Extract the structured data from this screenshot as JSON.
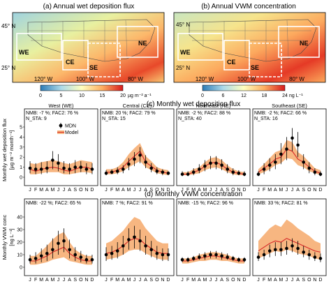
{
  "maps": [
    {
      "title": "(a) Annual wet deposition flux",
      "lat_labels": [
        "45° N",
        "25° N"
      ],
      "lon_labels": [
        "120° W",
        "100° W",
        "80° W"
      ],
      "regions": [
        "WE",
        "CE",
        "NE",
        "SE"
      ],
      "colorbar_ticks": [
        "0",
        "5",
        "10",
        "15",
        "20"
      ],
      "colorbar_unit": "µg m⁻² a⁻¹",
      "colors": [
        "#2c7bb6",
        "#abd9e9",
        "#ffffbf",
        "#fdae61",
        "#d7191c"
      ]
    },
    {
      "title": "(b) Annual VWM concentration",
      "lat_labels": [
        "45° N",
        "25° N"
      ],
      "lon_labels": [
        "120° W",
        "100° W",
        "80° W"
      ],
      "regions": [
        "WE",
        "CE",
        "NE",
        "SE"
      ],
      "colorbar_ticks": [
        "0",
        "6",
        "12",
        "18",
        "24"
      ],
      "colorbar_unit": "ng L⁻¹",
      "colors": [
        "#2c7bb6",
        "#abd9e9",
        "#ffffbf",
        "#fdae61",
        "#d7191c"
      ]
    }
  ],
  "colors": {
    "model_band": "#f7b27a",
    "model_line": "#d62728",
    "mdn": "#000000"
  },
  "chart_data": [
    {
      "type": "line",
      "title": "(c) Monthly wet deposition flux",
      "ylabel": "Monthly wet deposition flux",
      "yunit": "[µg m⁻² month⁻¹]",
      "ylim": [
        0,
        5
      ],
      "yticks": [
        0,
        1,
        2,
        3,
        4,
        5
      ],
      "months": [
        "J",
        "F",
        "M",
        "A",
        "M",
        "J",
        "J",
        "A",
        "S",
        "O",
        "N",
        "D"
      ],
      "xtick_text": "J FMAMJ J ASOND",
      "legend": [
        "MDN",
        "Model"
      ],
      "panels": [
        {
          "name": "West (WE)",
          "stats": [
            "NMB: -7 %; FAC2: 76 %",
            "N_STA: 9"
          ],
          "model": [
            0.8,
            0.6,
            0.8,
            0.9,
            1.0,
            0.9,
            0.7,
            0.6,
            0.8,
            1.0,
            1.0,
            0.8
          ],
          "model_low": [
            0.3,
            0.3,
            0.4,
            0.5,
            0.5,
            0.5,
            0.3,
            0.3,
            0.4,
            0.5,
            0.5,
            0.4
          ],
          "model_high": [
            1.4,
            1.3,
            1.5,
            1.6,
            1.7,
            1.6,
            1.4,
            1.3,
            1.5,
            1.7,
            1.6,
            1.5
          ],
          "mdn": [
            0.9,
            0.8,
            0.8,
            0.9,
            1.7,
            1.4,
            0.9,
            0.8,
            1.0,
            1.0,
            0.8,
            0.8
          ],
          "mdn_low": [
            0.4,
            0.3,
            0.3,
            0.4,
            0.8,
            0.6,
            0.4,
            0.3,
            0.4,
            0.5,
            0.3,
            0.3
          ],
          "mdn_high": [
            1.6,
            1.4,
            1.5,
            1.6,
            2.6,
            2.3,
            1.6,
            1.4,
            1.7,
            1.6,
            1.4,
            1.4
          ]
        },
        {
          "name": "Central (CE)",
          "stats": [
            "NMB: 20 %; FAC2: 79 %",
            "N_STA: 15"
          ],
          "model": [
            0.5,
            0.5,
            0.7,
            1.0,
            1.6,
            2.1,
            2.6,
            1.5,
            1.1,
            0.7,
            0.5,
            0.4
          ],
          "model_low": [
            0.3,
            0.3,
            0.4,
            0.6,
            1.0,
            1.3,
            1.6,
            1.0,
            0.7,
            0.4,
            0.3,
            0.2
          ],
          "model_high": [
            0.8,
            0.8,
            1.0,
            1.5,
            2.3,
            2.9,
            3.4,
            2.1,
            1.6,
            1.0,
            0.8,
            0.7
          ],
          "mdn": [
            0.4,
            0.5,
            0.6,
            0.8,
            1.3,
            1.8,
            2.2,
            1.5,
            0.9,
            0.6,
            0.5,
            0.4
          ],
          "mdn_low": [
            0.2,
            0.3,
            0.3,
            0.4,
            0.7,
            1.1,
            1.4,
            0.9,
            0.5,
            0.3,
            0.2,
            0.2
          ],
          "mdn_high": [
            0.7,
            0.8,
            1.0,
            1.2,
            1.9,
            2.5,
            3.0,
            2.2,
            1.4,
            1.0,
            0.8,
            0.6
          ]
        },
        {
          "name": "Northeast (NE)",
          "stats": [
            "NMB: -2 %; FAC2: 88 %",
            "N_STA: 40"
          ],
          "model": [
            0.3,
            0.3,
            0.5,
            0.7,
            1.1,
            1.4,
            1.5,
            1.2,
            0.8,
            0.5,
            0.4,
            0.3
          ],
          "model_low": [
            0.2,
            0.2,
            0.3,
            0.4,
            0.7,
            0.9,
            1.0,
            0.8,
            0.5,
            0.3,
            0.2,
            0.2
          ],
          "model_high": [
            0.5,
            0.5,
            0.8,
            1.0,
            1.5,
            1.9,
            2.0,
            1.7,
            1.2,
            0.8,
            0.6,
            0.5
          ],
          "mdn": [
            0.3,
            0.3,
            0.5,
            0.8,
            1.1,
            1.4,
            1.4,
            1.2,
            0.8,
            0.5,
            0.4,
            0.3
          ],
          "mdn_low": [
            0.1,
            0.1,
            0.2,
            0.4,
            0.6,
            0.8,
            0.8,
            0.7,
            0.4,
            0.2,
            0.2,
            0.1
          ],
          "mdn_high": [
            0.6,
            0.6,
            0.9,
            1.3,
            1.7,
            2.1,
            2.1,
            1.8,
            1.3,
            0.9,
            0.7,
            0.6
          ]
        },
        {
          "name": "Southeast (SE)",
          "stats": [
            "NMB: -2 %; FAC2: 66 %",
            "N_STA: 16"
          ],
          "model": [
            0.5,
            0.9,
            1.3,
            1.8,
            2.0,
            2.8,
            2.6,
            1.8,
            1.5,
            1.0,
            0.6,
            0.4
          ],
          "model_low": [
            0.3,
            0.5,
            0.8,
            1.2,
            1.4,
            1.9,
            1.8,
            1.2,
            1.0,
            0.6,
            0.4,
            0.2
          ],
          "model_high": [
            0.8,
            1.3,
            1.9,
            2.5,
            2.7,
            3.7,
            3.5,
            2.5,
            2.1,
            1.5,
            0.9,
            0.7
          ],
          "mdn": [
            0.3,
            0.8,
            1.2,
            1.5,
            2.3,
            2.8,
            3.9,
            3.2,
            1.5,
            0.9,
            0.5,
            0.3
          ],
          "mdn_low": [
            0.1,
            0.3,
            0.6,
            0.8,
            1.3,
            1.7,
            2.6,
            2.0,
            0.8,
            0.4,
            0.2,
            0.1
          ],
          "mdn_high": [
            0.6,
            1.4,
            1.9,
            2.3,
            3.4,
            4.0,
            4.9,
            4.5,
            2.3,
            1.5,
            0.9,
            0.6
          ]
        }
      ]
    },
    {
      "type": "line",
      "title": "(d) Monthly VWM concentration",
      "ylabel": "Monthly VWM conc",
      "yunit": "[ng L⁻¹]",
      "ylim": [
        0,
        40
      ],
      "yticks": [
        0,
        10,
        20,
        30,
        40
      ],
      "months": [
        "J",
        "F",
        "M",
        "A",
        "M",
        "J",
        "J",
        "A",
        "S",
        "O",
        "N",
        "D"
      ],
      "xtick_text": "J FMAMJ J ASOND",
      "panels": [
        {
          "name": "West (WE)",
          "stats": [
            "NMB: -22 %; FAC2: 65 %"
          ],
          "model": [
            5,
            5,
            7,
            9,
            12,
            14,
            16,
            11,
            8,
            6,
            5,
            5
          ],
          "model_low": [
            2,
            2,
            3,
            4,
            6,
            7,
            8,
            5,
            4,
            3,
            2,
            2
          ],
          "model_high": [
            9,
            9,
            13,
            17,
            22,
            26,
            28,
            20,
            14,
            11,
            9,
            9
          ],
          "mdn": [
            6,
            7,
            9,
            11,
            14,
            19,
            21,
            14,
            10,
            8,
            6,
            6
          ],
          "mdn_low": [
            3,
            3,
            4,
            5,
            7,
            10,
            12,
            7,
            5,
            4,
            3,
            3
          ],
          "mdn_high": [
            10,
            12,
            15,
            18,
            23,
            29,
            31,
            22,
            16,
            13,
            10,
            10
          ]
        },
        {
          "name": "Central (CE)",
          "stats": [
            "NMB: 7 %; FAC2: 91 %"
          ],
          "model": [
            11,
            12,
            14,
            17,
            21,
            23,
            22,
            18,
            15,
            12,
            11,
            11
          ],
          "model_low": [
            6,
            7,
            8,
            10,
            13,
            14,
            14,
            11,
            9,
            7,
            6,
            6
          ],
          "model_high": [
            19,
            21,
            25,
            29,
            35,
            40,
            38,
            31,
            26,
            21,
            19,
            19
          ],
          "mdn": [
            10,
            11,
            13,
            17,
            22,
            24,
            21,
            17,
            14,
            11,
            10,
            10
          ],
          "mdn_low": [
            5,
            6,
            7,
            10,
            14,
            15,
            13,
            10,
            8,
            6,
            5,
            5
          ],
          "mdn_high": [
            16,
            17,
            20,
            25,
            31,
            33,
            30,
            25,
            21,
            17,
            15,
            15
          ]
        },
        {
          "name": "Northeast (NE)",
          "stats": [
            "NMB: -15 %; FAC2: 96 %"
          ],
          "model": [
            5,
            5,
            6,
            7,
            8,
            9,
            9,
            8,
            7,
            6,
            5,
            5
          ],
          "model_low": [
            3,
            3,
            4,
            5,
            5,
            6,
            6,
            5,
            5,
            4,
            3,
            3
          ],
          "model_high": [
            7,
            7,
            8,
            10,
            11,
            12,
            12,
            11,
            10,
            8,
            7,
            7
          ],
          "mdn": [
            6,
            6,
            7,
            8,
            9,
            10,
            10,
            9,
            8,
            7,
            6,
            6
          ],
          "mdn_low": [
            4,
            4,
            5,
            6,
            6,
            7,
            7,
            6,
            6,
            5,
            4,
            4
          ],
          "mdn_high": [
            8,
            8,
            9,
            11,
            12,
            13,
            13,
            12,
            11,
            9,
            8,
            8
          ]
        },
        {
          "name": "Southeast (SE)",
          "stats": [
            "NMB: 33 %; FAC2: 81 %"
          ],
          "model": [
            13,
            16,
            19,
            21,
            20,
            23,
            21,
            19,
            17,
            15,
            13,
            12
          ],
          "model_low": [
            7,
            9,
            11,
            13,
            12,
            14,
            13,
            11,
            10,
            9,
            7,
            6
          ],
          "model_high": [
            21,
            26,
            31,
            34,
            32,
            38,
            35,
            31,
            28,
            25,
            21,
            19
          ],
          "mdn": [
            8,
            10,
            13,
            14,
            14,
            15,
            17,
            15,
            12,
            10,
            8,
            7
          ],
          "mdn_low": [
            5,
            6,
            8,
            9,
            9,
            10,
            12,
            10,
            8,
            6,
            5,
            4
          ],
          "mdn_high": [
            12,
            14,
            18,
            20,
            20,
            21,
            23,
            21,
            17,
            14,
            12,
            11
          ]
        }
      ]
    }
  ]
}
